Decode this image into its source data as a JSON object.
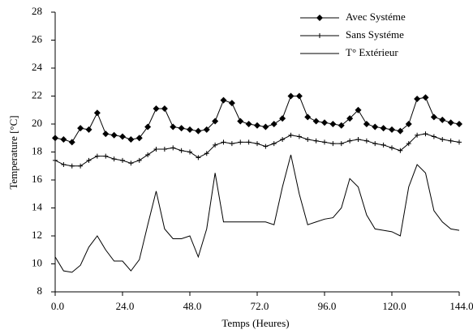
{
  "chart_data": {
    "type": "line",
    "x_label": "Temps (Heures)",
    "y_label": "Temperature [°C]",
    "x": [
      0,
      3,
      6,
      9,
      12,
      15,
      18,
      21,
      24,
      27,
      30,
      33,
      36,
      39,
      42,
      45,
      48,
      51,
      54,
      57,
      60,
      63,
      66,
      69,
      72,
      75,
      78,
      81,
      84,
      87,
      90,
      93,
      96,
      99,
      102,
      105,
      108,
      111,
      114,
      117,
      120,
      123,
      126,
      129,
      132,
      135,
      138,
      141,
      144
    ],
    "series": [
      {
        "name": "Avec Systéme",
        "color": "#000000",
        "marker": "diamond",
        "values": [
          19.0,
          18.9,
          18.7,
          19.7,
          19.6,
          20.8,
          19.3,
          19.2,
          19.1,
          18.9,
          19.0,
          19.8,
          21.1,
          21.1,
          19.8,
          19.7,
          19.6,
          19.5,
          19.6,
          20.2,
          21.7,
          21.5,
          20.2,
          20.0,
          19.9,
          19.8,
          20.0,
          20.4,
          22.0,
          22.0,
          20.5,
          20.2,
          20.1,
          20.0,
          19.9,
          20.4,
          21.0,
          20.0,
          19.8,
          19.7,
          19.6,
          19.5,
          20.0,
          21.8,
          21.9,
          20.5,
          20.3,
          20.1,
          20.0
        ]
      },
      {
        "name": "Sans Systéme",
        "color": "#000000",
        "marker": "plus",
        "values": [
          17.4,
          17.1,
          17.0,
          17.0,
          17.4,
          17.7,
          17.7,
          17.5,
          17.4,
          17.2,
          17.4,
          17.8,
          18.2,
          18.2,
          18.3,
          18.1,
          18.0,
          17.6,
          17.9,
          18.5,
          18.7,
          18.6,
          18.7,
          18.7,
          18.6,
          18.4,
          18.6,
          18.9,
          19.2,
          19.1,
          18.9,
          18.8,
          18.7,
          18.6,
          18.6,
          18.8,
          18.9,
          18.8,
          18.6,
          18.5,
          18.3,
          18.1,
          18.6,
          19.2,
          19.3,
          19.1,
          18.9,
          18.8,
          18.7
        ]
      },
      {
        "name": "T° Extérieur",
        "color": "#000000",
        "marker": "none",
        "values": [
          10.5,
          9.5,
          9.4,
          9.9,
          11.2,
          12.0,
          11.0,
          10.2,
          10.2,
          9.5,
          10.3,
          12.8,
          15.2,
          12.5,
          11.8,
          11.8,
          12.0,
          10.5,
          12.5,
          16.5,
          13.0,
          13.0,
          13.0,
          13.0,
          13.0,
          13.0,
          12.8,
          15.5,
          17.8,
          15.0,
          12.8,
          13.0,
          13.2,
          13.3,
          14.0,
          16.1,
          15.5,
          13.5,
          12.5,
          12.4,
          12.3,
          12.0,
          15.5,
          17.1,
          16.5,
          13.8,
          13.0,
          12.5,
          12.4
        ]
      }
    ],
    "xlim": [
      0,
      144
    ],
    "xticks": [
      {
        "value": 0,
        "label": "0.0"
      },
      {
        "value": 24,
        "label": "24.0"
      },
      {
        "value": 48,
        "label": "48.0"
      },
      {
        "value": 72,
        "label": "72.0"
      },
      {
        "value": 96,
        "label": "96.0"
      },
      {
        "value": 120,
        "label": "120.0"
      },
      {
        "value": 144,
        "label": "144.0"
      }
    ],
    "ylim": [
      8,
      28
    ],
    "yticks": [
      8,
      10,
      12,
      14,
      16,
      18,
      20,
      22,
      24,
      26,
      28
    ],
    "grid": false,
    "legend": "top-right"
  }
}
